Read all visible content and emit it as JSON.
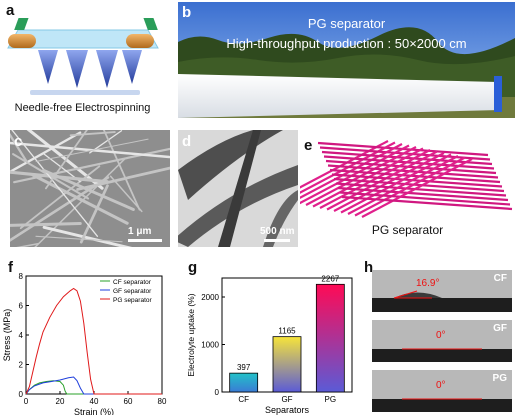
{
  "panels": {
    "a": {
      "label": "a",
      "caption": "Needle-free Electrospinning"
    },
    "b": {
      "label": "b",
      "line1": "PG separator",
      "line2": "High-throughput production : 50×2000 cm"
    },
    "c": {
      "label": "c",
      "scale": "1 μm"
    },
    "d": {
      "label": "d",
      "scale": "500 nm"
    },
    "e": {
      "label": "e",
      "caption": "PG separator"
    },
    "f": {
      "label": "f"
    },
    "g": {
      "label": "g"
    },
    "h": {
      "label": "h",
      "rows": [
        {
          "tag": "CF",
          "angle": "16.9°"
        },
        {
          "tag": "GF",
          "angle": "0°"
        },
        {
          "tag": "PG",
          "angle": "0°"
        }
      ]
    }
  },
  "chart_data": [
    {
      "type": "line",
      "panel": "f",
      "xlabel": "Strain (%)",
      "ylabel": "Stress (MPa)",
      "xlim": [
        0,
        80
      ],
      "ylim": [
        0,
        8
      ],
      "xticks": [
        0,
        20,
        40,
        60,
        80
      ],
      "yticks": [
        0,
        2,
        4,
        6,
        8
      ],
      "legend_position": "top-right",
      "series": [
        {
          "name": "CF separator",
          "color": "#2aa02a",
          "x": [
            0,
            2,
            5,
            8,
            12,
            16,
            20,
            22,
            23,
            24,
            80
          ],
          "y": [
            0,
            0.3,
            0.6,
            0.75,
            0.85,
            0.9,
            0.85,
            0.6,
            0.2,
            0,
            0
          ]
        },
        {
          "name": "GF separator",
          "color": "#1f3fdc",
          "x": [
            0,
            2,
            5,
            10,
            15,
            20,
            25,
            28,
            30,
            32,
            34,
            80
          ],
          "y": [
            0,
            0.3,
            0.55,
            0.75,
            0.85,
            0.95,
            1.1,
            1.15,
            0.9,
            0.4,
            0,
            0
          ]
        },
        {
          "name": "PG separator",
          "color": "#e0191a",
          "x": [
            0,
            2,
            4,
            6,
            8,
            10,
            14,
            18,
            22,
            26,
            28,
            30,
            32,
            34,
            36,
            38,
            40,
            80
          ],
          "y": [
            0,
            0.5,
            1.5,
            2.5,
            3.4,
            4.2,
            5.2,
            6.0,
            6.6,
            7.0,
            7.15,
            7.0,
            6.3,
            4.8,
            2.8,
            1.0,
            0,
            0
          ]
        }
      ]
    },
    {
      "type": "bar",
      "panel": "g",
      "xlabel": "Separators",
      "ylabel": "Electrolyte uptake (%)",
      "ylim": [
        0,
        2400
      ],
      "yticks": [
        0,
        1000,
        2000
      ],
      "categories": [
        "CF",
        "GF",
        "PG"
      ],
      "values": [
        397,
        1165,
        2267
      ],
      "value_labels": [
        "397",
        "1165",
        "2267"
      ]
    }
  ]
}
